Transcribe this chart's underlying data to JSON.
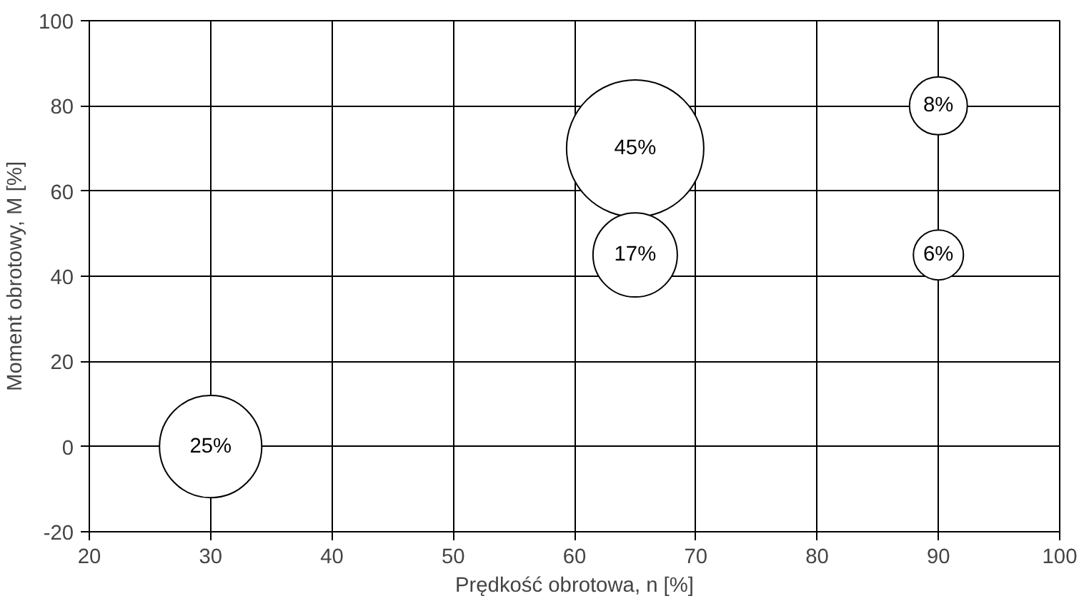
{
  "chart_data": {
    "type": "bubble",
    "xlabel": "Prędkość obrotowa, n [%]",
    "ylabel": "Moment obrotowy, M [%]",
    "x": [
      30,
      65,
      65,
      90,
      90
    ],
    "values": [
      0,
      70,
      45,
      80,
      45
    ],
    "sizes": [
      25,
      45,
      17,
      8,
      6
    ],
    "value_labels": [
      "25%",
      "45%",
      "17%",
      "8%",
      "6%"
    ],
    "color": "#ffffff",
    "xlim": [
      20,
      100
    ],
    "xticks": [
      20,
      30,
      40,
      50,
      60,
      70,
      80,
      90,
      100
    ],
    "ylim": [
      -20,
      100
    ],
    "yticks": [
      -20,
      0,
      20,
      40,
      60,
      80,
      100
    ],
    "grid": true
  }
}
